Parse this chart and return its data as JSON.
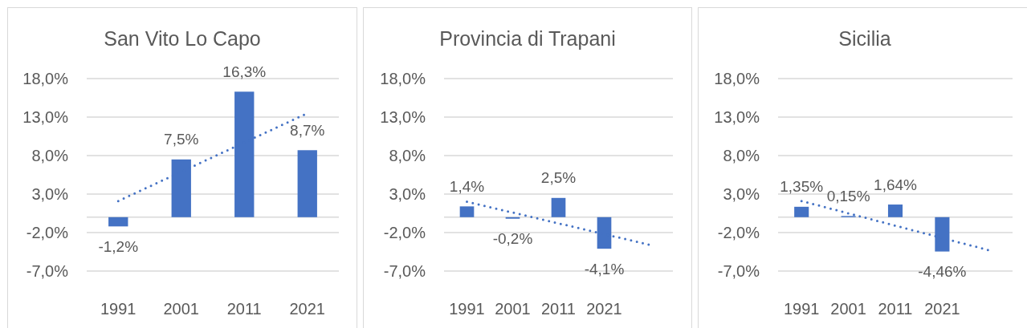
{
  "chart_data": [
    {
      "type": "bar",
      "title": "San Vito Lo Capo",
      "categories": [
        "1991",
        "2001",
        "2011",
        "2021"
      ],
      "series": [
        {
          "color": "#4472c4",
          "values": [
            -1.2,
            7.5,
            16.3,
            8.7
          ],
          "value_labels": [
            "-1,2%",
            "7,5%",
            "16,3%",
            "8,7%"
          ]
        },
        {
          "type": "line",
          "color": "#4472c4",
          "line_style": "dotted",
          "values": [
            2.1,
            5.9,
            9.7,
            13.5
          ]
        }
      ],
      "ylim": [
        -7,
        18
      ],
      "yticks": [
        {
          "value": -7,
          "label": "-7,0%"
        },
        {
          "value": -2,
          "label": "-2,0%"
        },
        {
          "value": 3,
          "label": "3,0%"
        },
        {
          "value": 8,
          "label": "8,0%"
        },
        {
          "value": 13,
          "label": "13,0%"
        },
        {
          "value": 18,
          "label": "18,0%"
        }
      ],
      "grid": "y"
    },
    {
      "type": "bar",
      "title": "Provincia di Trapani",
      "categories": [
        "1991",
        "2001",
        "2011",
        "2021",
        null
      ],
      "series": [
        {
          "color": "#4472c4",
          "values": [
            1.4,
            -0.2,
            2.5,
            -4.1,
            null
          ],
          "value_labels": [
            "1,4%",
            "-0,2%",
            "2,5%",
            "-4,1%",
            null
          ]
        },
        {
          "type": "line",
          "color": "#4472c4",
          "line_style": "dotted",
          "values": [
            2.0,
            0.6,
            -0.8,
            -2.2,
            -3.6
          ]
        }
      ],
      "ylim": [
        -7,
        18
      ],
      "yticks": [
        {
          "value": -7,
          "label": "-7,0%"
        },
        {
          "value": -2,
          "label": "-2,0%"
        },
        {
          "value": 3,
          "label": "3,0%"
        },
        {
          "value": 8,
          "label": "8,0%"
        },
        {
          "value": 13,
          "label": "13,0%"
        },
        {
          "value": 18,
          "label": "18,0%"
        }
      ],
      "grid": "y"
    },
    {
      "type": "bar",
      "title": "Sicilia",
      "categories": [
        "1991",
        "2001",
        "2011",
        "2021",
        null
      ],
      "series": [
        {
          "color": "#4472c4",
          "values": [
            1.35,
            0.15,
            1.64,
            -4.46,
            null
          ],
          "value_labels": [
            "1,35%",
            "0,15%",
            "1,64%",
            "-4,46%",
            null
          ]
        },
        {
          "type": "line",
          "color": "#4472c4",
          "line_style": "dotted",
          "values": [
            2.1,
            0.5,
            -1.1,
            -2.7,
            -4.3
          ]
        }
      ],
      "ylim": [
        -7,
        18
      ],
      "yticks": [
        {
          "value": -7,
          "label": "-7,0%"
        },
        {
          "value": -2,
          "label": "-2,0%"
        },
        {
          "value": 3,
          "label": "3,0%"
        },
        {
          "value": 8,
          "label": "8,0%"
        },
        {
          "value": 13,
          "label": "13,0%"
        },
        {
          "value": 18,
          "label": "18,0%"
        }
      ],
      "grid": "y"
    }
  ]
}
